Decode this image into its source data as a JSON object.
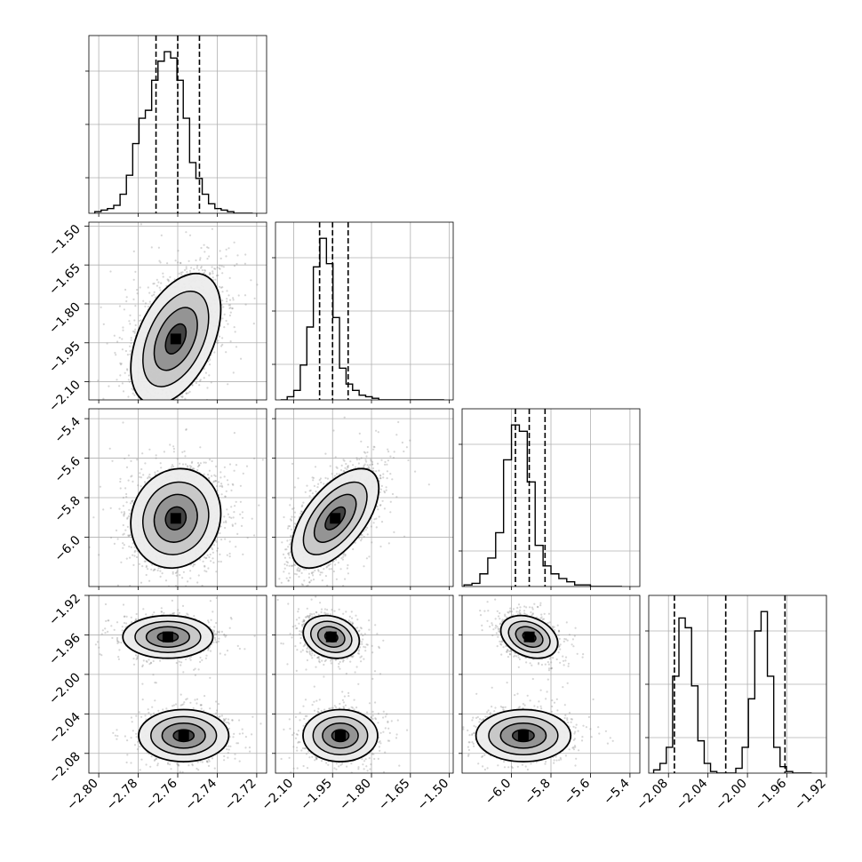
{
  "chart_data": {
    "type": "corner",
    "grid": true,
    "parameters": [
      {
        "range": [
          -2.805,
          -2.715
        ],
        "ticks": [
          -2.8,
          -2.78,
          -2.76,
          -2.74,
          -2.72
        ],
        "tick_labels": [
          "−2.80",
          "−2.78",
          "−2.76",
          "−2.74",
          "−2.72"
        ],
        "quantiles": [
          -2.771,
          -2.76,
          -2.749
        ],
        "hist_edges_range": [
          -2.802,
          -2.722
        ],
        "hist_counts": [
          1,
          2,
          3,
          5,
          12,
          24,
          44,
          60,
          65,
          84,
          96,
          102,
          98,
          84,
          60,
          32,
          22,
          12,
          6,
          3,
          2,
          1,
          0,
          0,
          0
        ]
      },
      {
        "range": [
          -2.17,
          -1.485
        ],
        "ticks": [
          -2.1,
          -1.95,
          -1.8,
          -1.65,
          -1.5
        ],
        "tick_labels": [
          "−2.10",
          "−1.95",
          "−1.80",
          "−1.65",
          "−1.50"
        ],
        "quantiles": [
          -2.0,
          -1.95,
          -1.89
        ],
        "hist_edges_range": [
          -2.15,
          -1.52
        ],
        "hist_counts": [
          0,
          2,
          6,
          22,
          46,
          84,
          102,
          86,
          52,
          20,
          10,
          6,
          3,
          2,
          1,
          0,
          0,
          0,
          0,
          0,
          0,
          0,
          0,
          0,
          0
        ]
      },
      {
        "range": [
          -6.25,
          -5.35
        ],
        "ticks": [
          -6.0,
          -5.8,
          -5.6,
          -5.4
        ],
        "tick_labels": [
          "−6.0",
          "−5.8",
          "−5.6",
          "−5.4"
        ],
        "quantiles": [
          -5.98,
          -5.91,
          -5.83
        ],
        "hist_edges_range": [
          -6.24,
          -5.44
        ],
        "hist_counts": [
          1,
          2,
          8,
          18,
          34,
          80,
          102,
          98,
          66,
          26,
          13,
          8,
          5,
          3,
          1,
          1,
          0,
          0,
          0,
          0
        ]
      },
      {
        "range": [
          -2.1,
          -1.92
        ],
        "ticks": [
          -2.08,
          -2.04,
          -2.0,
          -1.96,
          -1.92
        ],
        "tick_labels": [
          "−2.08",
          "−2.04",
          "−2.00",
          "−1.96",
          "−1.92"
        ],
        "quantiles": [
          -2.074,
          -2.022,
          -1.962
        ],
        "hist_edges_range": [
          -2.095,
          -1.935
        ],
        "hist_counts": [
          2,
          6,
          16,
          60,
          96,
          90,
          54,
          20,
          6,
          1,
          0,
          0,
          0,
          3,
          16,
          46,
          88,
          100,
          60,
          16,
          4,
          1,
          0,
          0,
          0
        ]
      }
    ],
    "pairs": [
      {
        "row": 1,
        "col": 0,
        "modes": [
          {
            "cx": -2.761,
            "cy": -1.935,
            "sx": 0.0095,
            "sy": 0.105,
            "rho": 0.45,
            "weight": 1.0
          }
        ]
      },
      {
        "row": 2,
        "col": 0,
        "modes": [
          {
            "cx": -2.761,
            "cy": -5.905,
            "sx": 0.0095,
            "sy": 0.105,
            "rho": 0.1,
            "weight": 1.0
          }
        ]
      },
      {
        "row": 2,
        "col": 1,
        "modes": [
          {
            "cx": -1.94,
            "cy": -5.905,
            "sx": 0.07,
            "sy": 0.105,
            "rho": 0.6,
            "weight": 1.0
          }
        ]
      },
      {
        "row": 3,
        "col": 0,
        "modes": [
          {
            "cx": -2.765,
            "cy": -1.962,
            "sx": 0.0095,
            "sy": 0.009,
            "rho": 0.0,
            "weight": 0.55
          },
          {
            "cx": -2.757,
            "cy": -2.062,
            "sx": 0.0095,
            "sy": 0.011,
            "rho": 0.0,
            "weight": 0.45
          }
        ]
      },
      {
        "row": 3,
        "col": 1,
        "modes": [
          {
            "cx": -1.955,
            "cy": -1.962,
            "sx": 0.045,
            "sy": 0.009,
            "rho": -0.2,
            "weight": 0.55
          },
          {
            "cx": -1.92,
            "cy": -2.062,
            "sx": 0.06,
            "sy": 0.011,
            "rho": 0.0,
            "weight": 0.45
          }
        ]
      },
      {
        "row": 3,
        "col": 2,
        "modes": [
          {
            "cx": -5.91,
            "cy": -1.962,
            "sx": 0.06,
            "sy": 0.009,
            "rho": -0.3,
            "weight": 0.55
          },
          {
            "cx": -5.94,
            "cy": -2.062,
            "sx": 0.1,
            "sy": 0.011,
            "rho": 0.0,
            "weight": 0.45
          }
        ]
      }
    ]
  }
}
